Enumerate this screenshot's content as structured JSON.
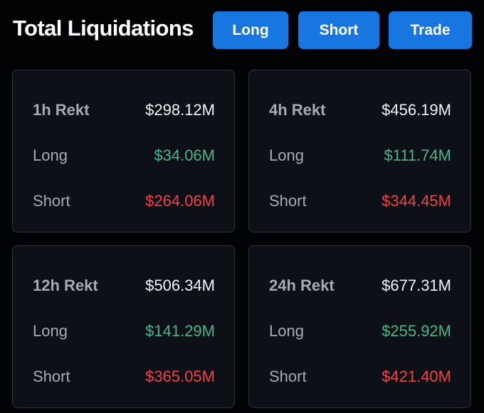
{
  "header": {
    "title": "Total Liquidations",
    "buttons": {
      "long": "Long",
      "short": "Short",
      "trade": "Trade"
    }
  },
  "colors": {
    "accent": "#1876e0",
    "long": "#4ab48b",
    "short": "#f0424a",
    "background": "#020305",
    "card": "#0d1117"
  },
  "cards": [
    {
      "label": "1h Rekt",
      "total": "$298.12M",
      "long_label": "Long",
      "long": "$34.06M",
      "short_label": "Short",
      "short": "$264.06M"
    },
    {
      "label": "4h Rekt",
      "total": "$456.19M",
      "long_label": "Long",
      "long": "$111.74M",
      "short_label": "Short",
      "short": "$344.45M"
    },
    {
      "label": "12h Rekt",
      "total": "$506.34M",
      "long_label": "Long",
      "long": "$141.29M",
      "short_label": "Short",
      "short": "$365.05M"
    },
    {
      "label": "24h Rekt",
      "total": "$677.31M",
      "long_label": "Long",
      "long": "$255.92M",
      "short_label": "Short",
      "short": "$421.40M"
    }
  ]
}
